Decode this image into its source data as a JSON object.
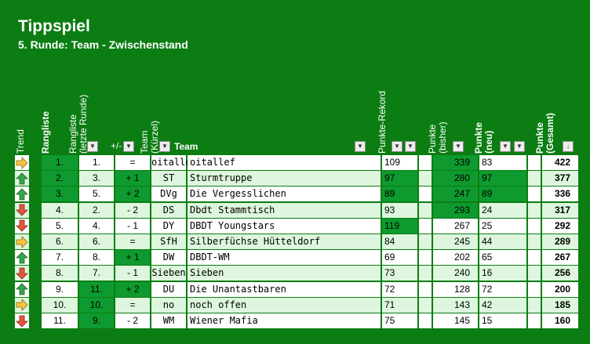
{
  "title": "Tippspiel",
  "subtitle": "5. Runde:  Team - Zwischenstand",
  "headers": {
    "trend": "Trend",
    "rangliste": "Rangliste",
    "rangliste_letzte": "Rangliste\n(letzte Runde)",
    "plusminus": "+/-",
    "team_kuerzel": "Team\n(Kürzel)",
    "team": "Team",
    "rekord": "Punkte-Rekord",
    "punkte_bisher": "Punkte\n(bisher)",
    "punkte_neu": "Punkte\n(neu)",
    "punkte_gesamt": "Punkte\n(Gesamt)"
  },
  "colors": {
    "background": "#0b7d12",
    "row_light": "#ddf6dd",
    "row_white": "#ffffff",
    "highlight": "#0e9a2f",
    "arrow_up": "#2fa84a",
    "arrow_down": "#e8553e",
    "arrow_flat": "#f5c542"
  },
  "rows": [
    {
      "trend": "flat",
      "rank": "1.",
      "last": "1.",
      "diff": "=",
      "abbr": "oitallef",
      "team": "oitallef",
      "record": "109",
      "prev": "339",
      "new": "83",
      "total": "422"
    },
    {
      "trend": "up",
      "rank": "2.",
      "last": "3.",
      "diff": "+ 1",
      "abbr": "ST",
      "team": "Sturmtruppe",
      "record": "97",
      "prev": "280",
      "new": "97",
      "total": "377"
    },
    {
      "trend": "up",
      "rank": "3.",
      "last": "5.",
      "diff": "+ 2",
      "abbr": "DVg",
      "team": "Die Vergesslichen",
      "record": "89",
      "prev": "247",
      "new": "89",
      "total": "336"
    },
    {
      "trend": "down",
      "rank": "4.",
      "last": "2.",
      "diff": "- 2",
      "abbr": "DS",
      "team": "Dbdt Stammtisch",
      "record": "93",
      "prev": "293",
      "new": "24",
      "total": "317"
    },
    {
      "trend": "down",
      "rank": "5.",
      "last": "4.",
      "diff": "- 1",
      "abbr": "DY",
      "team": "DBDT Youngstars",
      "record": "119",
      "prev": "267",
      "new": "25",
      "total": "292"
    },
    {
      "trend": "flat",
      "rank": "6.",
      "last": "6.",
      "diff": "=",
      "abbr": "SfH",
      "team": "Silberfüchse Hütteldorf",
      "record": "84",
      "prev": "245",
      "new": "44",
      "total": "289"
    },
    {
      "trend": "up",
      "rank": "7.",
      "last": "8.",
      "diff": "+ 1",
      "abbr": "DW",
      "team": "DBDT-WM",
      "record": "69",
      "prev": "202",
      "new": "65",
      "total": "267"
    },
    {
      "trend": "down",
      "rank": "8.",
      "last": "7.",
      "diff": "- 1",
      "abbr": "Sieben",
      "team": "Sieben",
      "record": "73",
      "prev": "240",
      "new": "16",
      "total": "256"
    },
    {
      "trend": "up",
      "rank": "9.",
      "last": "11.",
      "diff": "+ 2",
      "abbr": "DU",
      "team": "Die Unantastbaren",
      "record": "72",
      "prev": "128",
      "new": "72",
      "total": "200"
    },
    {
      "trend": "flat",
      "rank": "10.",
      "last": "10.",
      "diff": "=",
      "abbr": "no",
      "team": "noch offen",
      "record": "71",
      "prev": "143",
      "new": "42",
      "total": "185"
    },
    {
      "trend": "down",
      "rank": "11.",
      "last": "9.",
      "diff": "- 2",
      "abbr": "WM",
      "team": "Wiener Mafia",
      "record": "75",
      "prev": "145",
      "new": "15",
      "total": "160"
    }
  ]
}
